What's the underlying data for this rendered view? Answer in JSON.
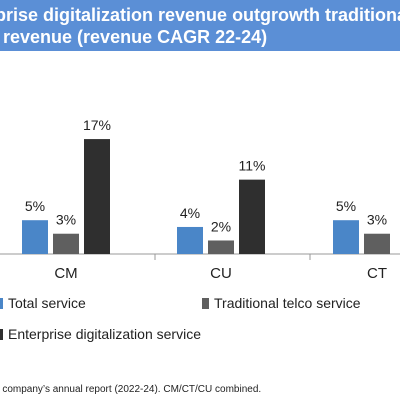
{
  "title": {
    "line1": "rprise digitalization revenue outgrowth traditional",
    "line2": "e revenue (revenue CAGR 22-24)"
  },
  "chart_data": {
    "type": "bar",
    "title": "rprise digitalization revenue outgrowth traditional e revenue (revenue CAGR 22-24)",
    "categories": [
      "CM",
      "CU",
      "CT"
    ],
    "series": [
      {
        "name": "Total service",
        "values": [
          5,
          4,
          5
        ],
        "labels": [
          "5%",
          "4%",
          "5%"
        ],
        "color": "#4a86c8"
      },
      {
        "name": "Traditional telco service",
        "values": [
          3,
          2,
          3
        ],
        "labels": [
          "3%",
          "2%",
          "3%"
        ],
        "color": "#5f5f5f"
      },
      {
        "name": "Enterprise digitalization service",
        "values": [
          17,
          11,
          null
        ],
        "labels": [
          "17%",
          "11%",
          ""
        ],
        "color": "#2f2f2f"
      }
    ],
    "ylim": [
      0,
      20
    ],
    "grid": false,
    "legend_position": "bottom"
  },
  "legend": [
    {
      "label": "Total service",
      "color": "#4a86c8"
    },
    {
      "label": "Traditional telco service",
      "color": "#5f5f5f"
    },
    {
      "label": "Enterprise digitalization service",
      "color": "#2f2f2f"
    }
  ],
  "footnote": "n company’s annual report (2022-24). CM/CT/CU combined.",
  "colors": {
    "title_bg": "#5b8fd6",
    "axis": "#999999"
  }
}
